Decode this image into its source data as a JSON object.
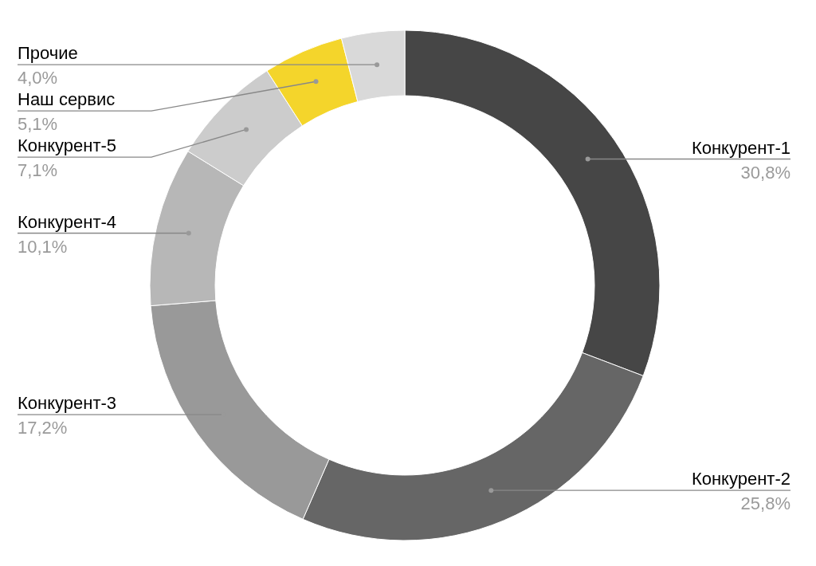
{
  "chart_data": {
    "type": "donut",
    "categories": [
      "Конкурент-1",
      "Конкурент-2",
      "Конкурент-3",
      "Конкурент-4",
      "Конкурент-5",
      "Наш сервис",
      "Прочие"
    ],
    "values": [
      30.8,
      25.8,
      17.2,
      10.1,
      7.1,
      5.1,
      4.0
    ],
    "colors": [
      "#464646",
      "#666666",
      "#999999",
      "#b7b7b7",
      "#cccccc",
      "#f4d52b",
      "#d9d9d9"
    ],
    "value_labels": [
      "30,8%",
      "25,8%",
      "17,2%",
      "10,1%",
      "7,1%",
      "5,1%",
      "4,0%"
    ]
  }
}
